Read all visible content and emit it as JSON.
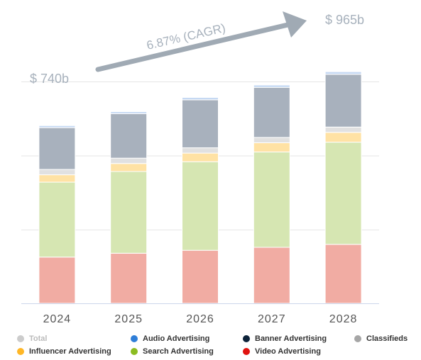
{
  "chart_data": {
    "type": "bar",
    "stacked": true,
    "categories": [
      "2024",
      "2025",
      "2026",
      "2027",
      "2028"
    ],
    "series": [
      {
        "name": "Video Advertising",
        "color": "#f1aca3",
        "values": [
          156,
          169,
          179,
          189,
          199
        ]
      },
      {
        "name": "Search Advertising",
        "color": "#d6e6b2",
        "values": [
          253,
          276,
          299,
          322,
          345
        ]
      },
      {
        "name": "Influencer Advertising",
        "color": "#ffe2a4",
        "values": [
          25,
          27,
          29,
          31,
          33
        ]
      },
      {
        "name": "Classifieds",
        "color": "#e1e1e1",
        "values": [
          18,
          18,
          18,
          18,
          18
        ]
      },
      {
        "name": "Banner Advertising",
        "color": "#a8b1bd",
        "values": [
          141,
          150,
          162,
          169,
          178
        ]
      },
      {
        "name": "Audio Advertising",
        "color": "#c6d9f3",
        "values": [
          7,
          7,
          8,
          8,
          9
        ]
      }
    ],
    "ylim": [
      0,
      1000
    ],
    "grid": true,
    "legend_position": "bottom",
    "annotations": {
      "start_label": "$ 740b",
      "end_label": "$ 965b",
      "cagr_label": "6.87% (CAGR)"
    }
  },
  "legend": [
    {
      "label": "Total",
      "color": "#cccccc",
      "muted": true
    },
    {
      "label": "Audio Advertising",
      "color": "#2f7ed8",
      "muted": false
    },
    {
      "label": "Banner Advertising",
      "color": "#0d233a",
      "muted": false
    },
    {
      "label": "Classifieds",
      "color": "#a6a6a6",
      "muted": false
    },
    {
      "label": "Influencer Advertising",
      "color": "#ffb726",
      "muted": false
    },
    {
      "label": "Search Advertising",
      "color": "#8bbc21",
      "muted": false
    },
    {
      "label": "Video Advertising",
      "color": "#e0120f",
      "muted": false
    }
  ],
  "colors": {
    "grid": "#e6e6e6",
    "axis": "#ccd6eb",
    "tick_label": "#555555",
    "annotation": "#a7b1bc",
    "arrow": "#a0aab4"
  }
}
